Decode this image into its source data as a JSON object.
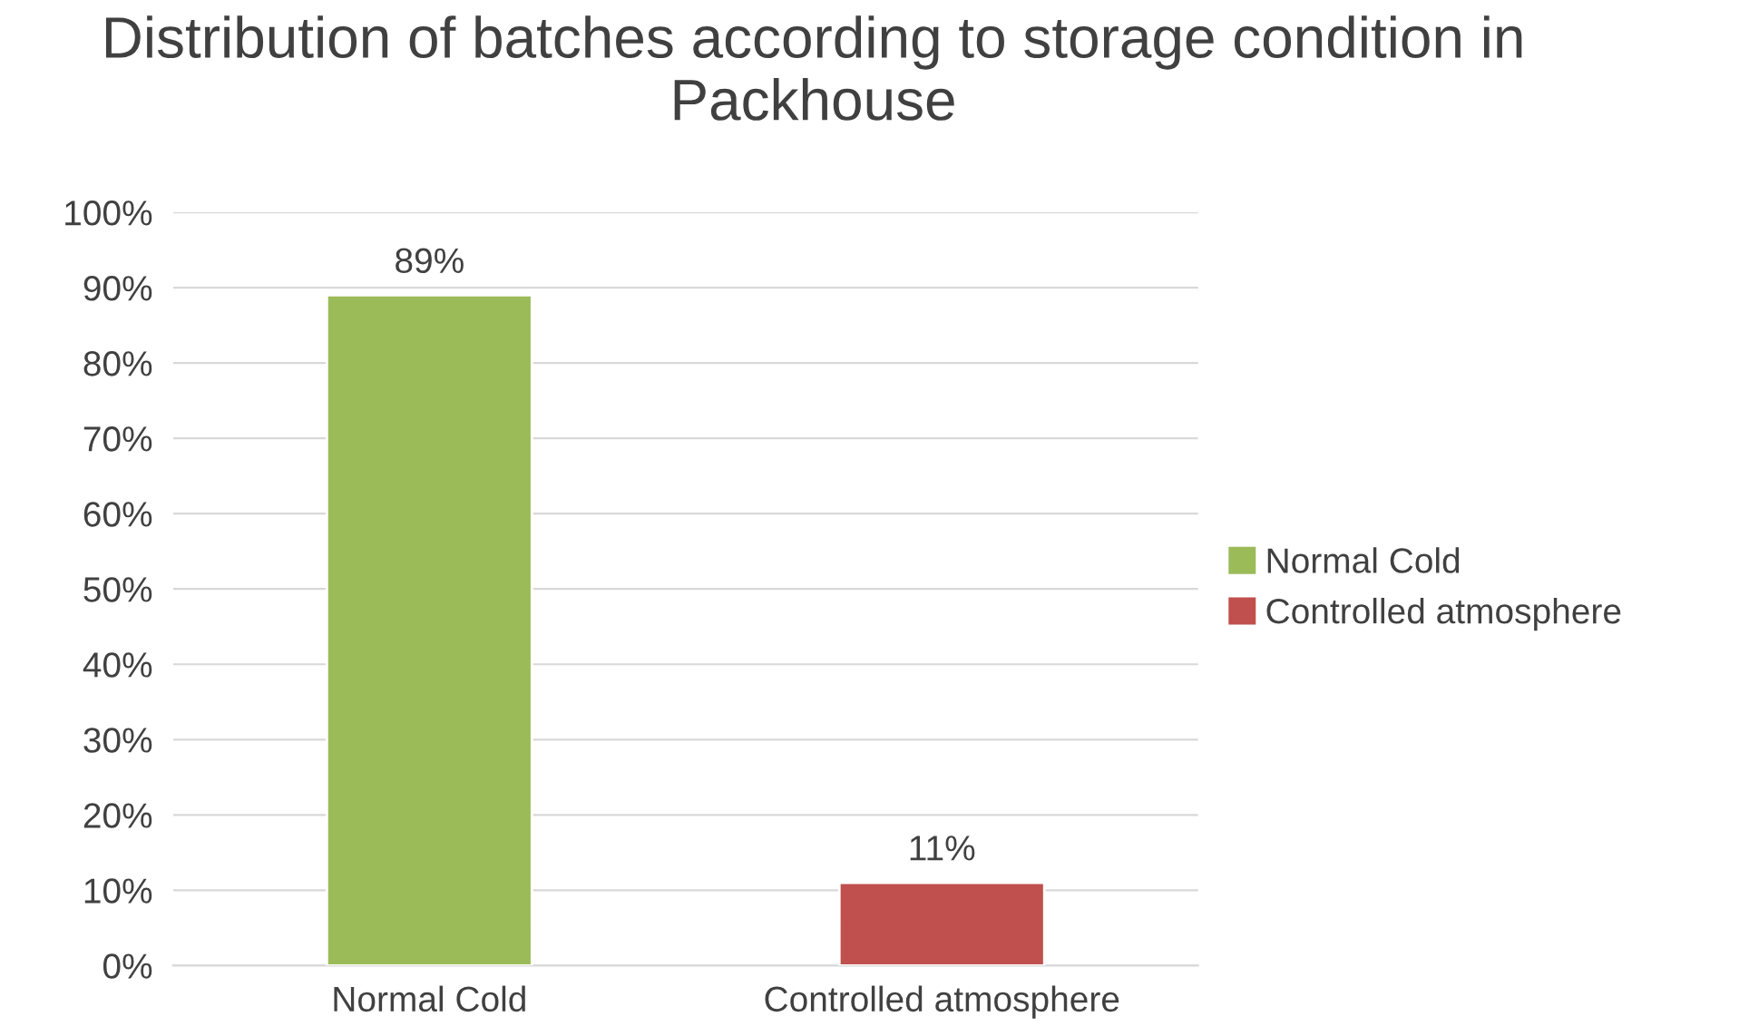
{
  "chart_data": {
    "type": "bar",
    "title": "Distribution of batches according to storage condition in Packhouse",
    "categories": [
      "Normal Cold",
      "Controlled atmosphere"
    ],
    "series": [
      {
        "name": "Normal Cold",
        "color": "#9bbb59",
        "values": [
          89,
          null
        ]
      },
      {
        "name": "Controlled atmosphere",
        "color": "#c0504d",
        "values": [
          null,
          11
        ]
      }
    ],
    "ylim": [
      0,
      100
    ],
    "yticks": [
      {
        "value": 0,
        "label": "0%"
      },
      {
        "value": 10,
        "label": "10%"
      },
      {
        "value": 20,
        "label": "20%"
      },
      {
        "value": 30,
        "label": "30%"
      },
      {
        "value": 40,
        "label": "40%"
      },
      {
        "value": 50,
        "label": "50%"
      },
      {
        "value": 60,
        "label": "60%"
      },
      {
        "value": 70,
        "label": "70%"
      },
      {
        "value": 80,
        "label": "80%"
      },
      {
        "value": 90,
        "label": "90%"
      },
      {
        "value": 100,
        "label": "100%"
      }
    ],
    "value_labels": [
      "89%",
      "11%"
    ],
    "grid": "y",
    "legend": "right"
  }
}
